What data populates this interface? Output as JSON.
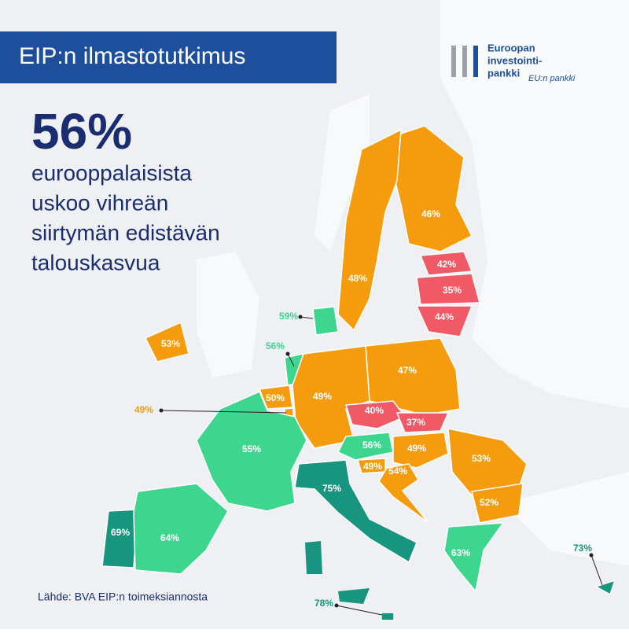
{
  "header": {
    "title": "EIP:n ilmastotutkimus"
  },
  "logo": {
    "lines": [
      "Euroopan",
      "investointi-",
      "pankki"
    ],
    "tagline": "EU:n pankki"
  },
  "headline": {
    "value": "56%",
    "lines": [
      "eurooppalaisista",
      "uskoo vihreän",
      "siirtymän edistävän",
      "talouskasvua"
    ]
  },
  "regions": [
    {
      "label": "46%",
      "color": "#f59b0e"
    },
    {
      "label": "48%",
      "color": "#f59b0e"
    },
    {
      "label": "42%",
      "color": "#f05a66"
    },
    {
      "label": "35%",
      "color": "#f05a66"
    },
    {
      "label": "44%",
      "color": "#f05a66"
    },
    {
      "label": "59%",
      "color": "#3ed68f"
    },
    {
      "label": "53%",
      "color": "#f59b0e"
    },
    {
      "label": "56%",
      "color": "#3ed68f"
    },
    {
      "label": "47%",
      "color": "#f59b0e"
    },
    {
      "label": "49%",
      "color": "#f59b0e"
    },
    {
      "label": "50%",
      "color": "#f59b0e"
    },
    {
      "label": "49%",
      "color": "#f59b0e"
    },
    {
      "label": "40%",
      "color": "#f05a66"
    },
    {
      "label": "37%",
      "color": "#f05a66"
    },
    {
      "label": "55%",
      "color": "#3ed68f"
    },
    {
      "label": "56%",
      "color": "#3ed68f"
    },
    {
      "label": "49%",
      "color": "#f59b0e"
    },
    {
      "label": "53%",
      "color": "#f59b0e"
    },
    {
      "label": "49%",
      "color": "#f59b0e"
    },
    {
      "label": "54%",
      "color": "#f59b0e"
    },
    {
      "label": "52%",
      "color": "#f59b0e"
    },
    {
      "label": "75%",
      "color": "#17957f"
    },
    {
      "label": "69%",
      "color": "#17957f"
    },
    {
      "label": "64%",
      "color": "#3ed68f"
    },
    {
      "label": "63%",
      "color": "#3ed68f"
    },
    {
      "label": "73%",
      "color": "#17957f"
    },
    {
      "label": "78%",
      "color": "#17957f"
    }
  ],
  "source": "Lähde: BVA EIP:n toimeksiannosta"
}
